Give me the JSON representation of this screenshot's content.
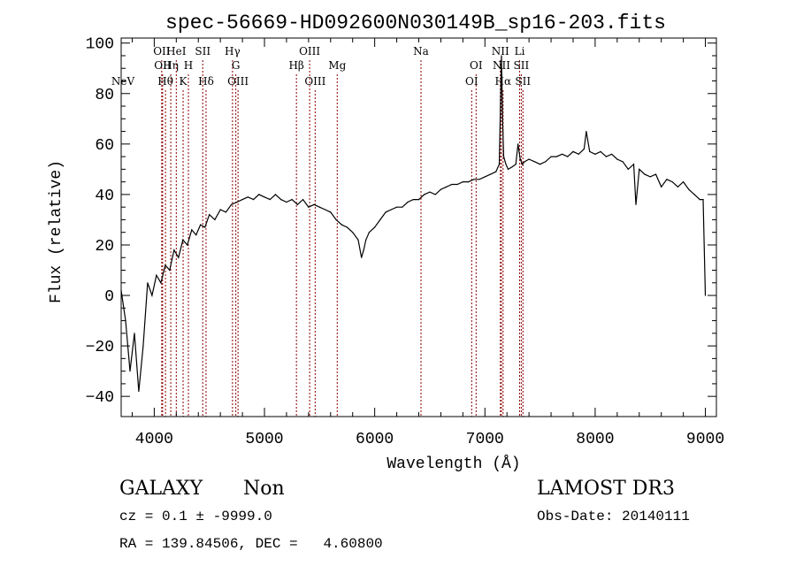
{
  "chart_data": {
    "type": "line",
    "title": "spec-56669-HD092600N030149B_sp16-203.fits",
    "xlabel": "Wavelength (Å)",
    "ylabel": "Flux (relative)",
    "xlim": [
      3700,
      9100
    ],
    "ylim": [
      -48,
      102
    ],
    "xticks": [
      4000,
      5000,
      6000,
      7000,
      8000,
      9000
    ],
    "yticks": [
      -40,
      -20,
      0,
      20,
      40,
      60,
      80,
      100
    ],
    "series": [
      {
        "name": "flux",
        "x": [
          3700,
          3740,
          3780,
          3820,
          3860,
          3900,
          3940,
          3980,
          4020,
          4060,
          4100,
          4140,
          4180,
          4220,
          4260,
          4300,
          4340,
          4380,
          4420,
          4460,
          4500,
          4550,
          4600,
          4650,
          4700,
          4750,
          4800,
          4850,
          4900,
          4950,
          5000,
          5050,
          5100,
          5150,
          5200,
          5250,
          5300,
          5350,
          5400,
          5450,
          5500,
          5550,
          5600,
          5650,
          5700,
          5750,
          5800,
          5850,
          5880,
          5900,
          5920,
          5950,
          6000,
          6050,
          6100,
          6150,
          6200,
          6250,
          6300,
          6350,
          6400,
          6450,
          6500,
          6550,
          6600,
          6650,
          6700,
          6750,
          6800,
          6850,
          6900,
          6950,
          7000,
          7050,
          7100,
          7130,
          7150,
          7160,
          7170,
          7190,
          7210,
          7250,
          7280,
          7300,
          7320,
          7340,
          7360,
          7400,
          7450,
          7500,
          7550,
          7600,
          7650,
          7700,
          7750,
          7800,
          7850,
          7900,
          7920,
          7950,
          8000,
          8050,
          8100,
          8150,
          8200,
          8250,
          8300,
          8350,
          8370,
          8400,
          8450,
          8500,
          8550,
          8600,
          8650,
          8700,
          8750,
          8800,
          8850,
          8900,
          8950,
          8980,
          9000
        ],
        "y": [
          2,
          -10,
          -30,
          -15,
          -38,
          -20,
          5,
          0,
          8,
          5,
          12,
          10,
          18,
          15,
          22,
          20,
          26,
          24,
          28,
          27,
          32,
          30,
          34,
          33,
          36,
          37,
          38,
          39,
          38,
          40,
          39,
          38,
          40,
          38,
          37,
          38,
          36,
          38,
          35,
          36,
          35,
          34,
          33,
          30,
          28,
          27,
          25,
          22,
          15,
          18,
          22,
          25,
          27,
          30,
          33,
          34,
          35,
          35,
          37,
          38,
          38,
          40,
          41,
          40,
          42,
          43,
          44,
          44,
          45,
          45,
          46,
          46,
          47,
          48,
          49,
          52,
          95,
          70,
          55,
          52,
          50,
          51,
          52,
          60,
          54,
          52,
          53,
          54,
          53,
          52,
          53,
          55,
          55,
          56,
          55,
          57,
          56,
          58,
          65,
          57,
          56,
          57,
          55,
          56,
          54,
          53,
          50,
          52,
          36,
          50,
          48,
          47,
          48,
          43,
          46,
          45,
          43,
          45,
          42,
          40,
          38,
          38,
          0
        ]
      }
    ],
    "lines": [
      {
        "lambda": 3426,
        "label": "NeV",
        "row": 3
      },
      {
        "lambda": 4068,
        "label": "OII",
        "row": 1
      },
      {
        "lambda": 4076,
        "label": "OII",
        "row": 2
      },
      {
        "lambda": 4102,
        "label": "Hθ",
        "row": 3
      },
      {
        "lambda": 4150,
        "label": "Hη",
        "row": 2
      },
      {
        "lambda": 4200,
        "label": "HeI",
        "row": 1
      },
      {
        "lambda": 4262,
        "label": "K",
        "row": 3
      },
      {
        "lambda": 4310,
        "label": "H",
        "row": 2
      },
      {
        "lambda": 4440,
        "label": "SII",
        "row": 1
      },
      {
        "lambda": 4470,
        "label": "Hδ",
        "row": 3
      },
      {
        "lambda": 4710,
        "label": "Hγ",
        "row": 1
      },
      {
        "lambda": 4740,
        "label": "G",
        "row": 2
      },
      {
        "lambda": 4760,
        "label": "OIII",
        "row": 3
      },
      {
        "lambda": 5290,
        "label": "Hβ",
        "row": 2
      },
      {
        "lambda": 5410,
        "label": "OIII",
        "row": 1
      },
      {
        "lambda": 5460,
        "label": "OIII",
        "row": 3
      },
      {
        "lambda": 5660,
        "label": "Mg",
        "row": 2
      },
      {
        "lambda": 6420,
        "label": "Na",
        "row": 1
      },
      {
        "lambda": 6880,
        "label": "OI",
        "row": 3
      },
      {
        "lambda": 6920,
        "label": "OI",
        "row": 2
      },
      {
        "lambda": 7140,
        "label": "NII",
        "row": 1
      },
      {
        "lambda": 7150,
        "label": "NII",
        "row": 2
      },
      {
        "lambda": 7165,
        "label": "Hα",
        "row": 3
      },
      {
        "lambda": 7315,
        "label": "Li",
        "row": 1
      },
      {
        "lambda": 7330,
        "label": "SII",
        "row": 2
      },
      {
        "lambda": 7345,
        "label": "SII",
        "row": 3
      }
    ]
  },
  "info": {
    "object_class": "GALAXY",
    "subclass": "Non",
    "survey": "LAMOST DR3",
    "cz": "cz = 0.1 ± -9999.0",
    "obs_date": "Obs-Date: 20140111",
    "coords": "RA = 139.84506, DEC =   4.60800"
  },
  "colors": {
    "line": "#000000",
    "marker": "#8b0000",
    "background": "#ffffff"
  }
}
